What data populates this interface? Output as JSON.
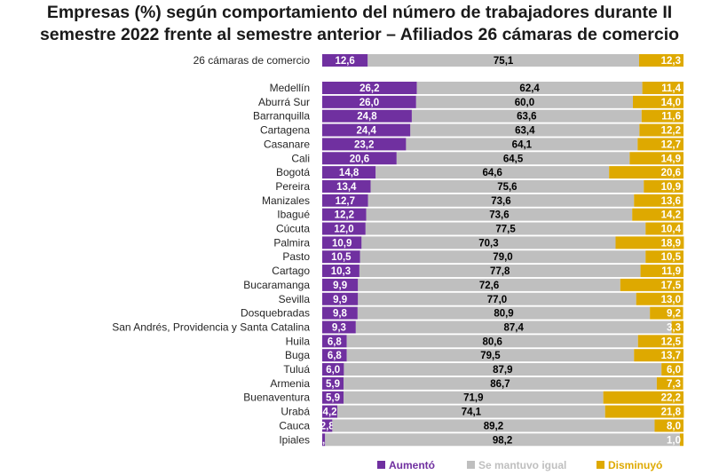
{
  "chart_data": {
    "type": "bar",
    "stacked": "100%",
    "orientation": "horizontal",
    "title": [
      "Empresas (%) según comportamiento del número de trabajadores durante II",
      "semestre 2022 frente al semestre anterior – Afiliados 26 cámaras de comercio"
    ],
    "categories": [
      "26 cámaras de comercio",
      "Medellín",
      "Aburrá Sur",
      "Barranquilla",
      "Cartagena",
      "Casanare",
      "Cali",
      "Bogotá",
      "Pereira",
      "Manizales",
      "Ibagué",
      "Cúcuta",
      "Palmira",
      "Pasto",
      "Cartago",
      "Bucaramanga",
      "Sevilla",
      "Dosquebradas",
      "San Andrés, Providencia y Santa Catalina",
      "Huila",
      "Buga",
      "Tuluá",
      "Armenia",
      "Buenaventura",
      "Urabá",
      "Cauca",
      "Ipiales"
    ],
    "series": [
      {
        "name": "Aumentó",
        "color": "#7030a0",
        "values": [
          12.6,
          26.2,
          26.0,
          24.8,
          24.4,
          23.2,
          20.6,
          14.8,
          13.4,
          12.7,
          12.2,
          12.0,
          10.9,
          10.5,
          10.3,
          9.9,
          9.9,
          9.8,
          9.3,
          6.8,
          6.8,
          6.0,
          5.9,
          5.9,
          4.2,
          2.8,
          0.8
        ]
      },
      {
        "name": "Se mantuvo igual",
        "color": "#bfbfbf",
        "values": [
          75.1,
          62.4,
          60.0,
          63.6,
          63.4,
          64.1,
          64.5,
          64.6,
          75.6,
          73.6,
          73.6,
          77.5,
          70.3,
          79.0,
          77.8,
          72.6,
          77.0,
          80.9,
          87.4,
          80.6,
          79.5,
          87.9,
          86.7,
          71.9,
          74.1,
          89.2,
          98.2
        ]
      },
      {
        "name": "Disminuyó",
        "color": "#dea900",
        "values": [
          12.3,
          11.4,
          14.0,
          11.6,
          12.2,
          12.7,
          14.9,
          20.6,
          10.9,
          13.6,
          14.2,
          10.4,
          18.9,
          10.5,
          11.9,
          17.5,
          13.0,
          9.2,
          3.3,
          12.5,
          13.7,
          6.0,
          7.3,
          22.2,
          21.8,
          8.0,
          1.0
        ]
      }
    ],
    "xlim": [
      0,
      100
    ],
    "legend_position": "bottom"
  }
}
